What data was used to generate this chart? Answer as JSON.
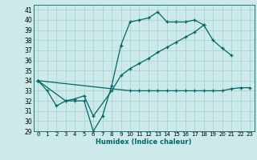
{
  "xlabel": "Humidex (Indice chaleur)",
  "bg_color": "#cceaea",
  "grid_color": "#aacccc",
  "line_color": "#006666",
  "xlim": [
    -0.5,
    23.5
  ],
  "ylim": [
    29,
    41.5
  ],
  "xticks": [
    0,
    1,
    2,
    3,
    4,
    5,
    6,
    7,
    8,
    9,
    10,
    11,
    12,
    13,
    14,
    15,
    16,
    17,
    18,
    19,
    20,
    21,
    22,
    23
  ],
  "yticks": [
    29,
    30,
    31,
    32,
    33,
    34,
    35,
    36,
    37,
    38,
    39,
    40,
    41
  ],
  "series": [
    {
      "x": [
        0,
        1,
        2,
        3,
        4,
        5,
        6,
        7,
        8,
        9,
        10,
        11,
        12,
        13,
        14,
        15,
        16,
        17,
        18,
        19,
        20,
        21
      ],
      "y": [
        34.0,
        33.0,
        31.5,
        32.0,
        32.0,
        32.0,
        29.0,
        30.5,
        33.5,
        37.5,
        39.8,
        40.0,
        40.2,
        40.8,
        39.8,
        39.8,
        39.8,
        40.0,
        39.5,
        38.0,
        37.2,
        36.5
      ]
    },
    {
      "x": [
        0,
        3,
        4,
        5,
        6,
        8,
        9,
        10,
        11,
        12,
        13,
        14,
        15,
        16,
        17,
        18
      ],
      "y": [
        34.0,
        32.0,
        32.2,
        32.5,
        30.5,
        33.0,
        34.5,
        35.2,
        35.7,
        36.2,
        36.8,
        37.3,
        37.8,
        38.3,
        38.8,
        39.5
      ]
    },
    {
      "x": [
        0,
        10,
        11,
        12,
        13,
        14,
        15,
        16,
        17,
        18,
        19,
        20,
        21,
        22,
        23
      ],
      "y": [
        34.0,
        33.0,
        33.0,
        33.0,
        33.0,
        33.0,
        33.0,
        33.0,
        33.0,
        33.0,
        33.0,
        33.0,
        33.2,
        33.3,
        33.3
      ]
    }
  ]
}
